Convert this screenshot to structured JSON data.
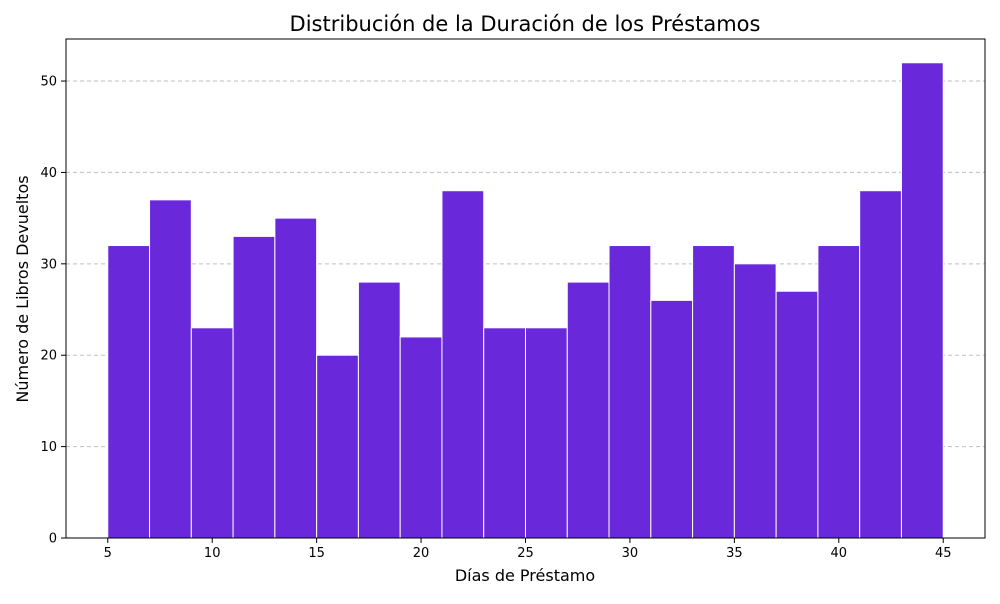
{
  "chart_data": {
    "type": "bar",
    "title": "Distribución de la Duración de los Préstamos",
    "xlabel": "Días de Préstamo",
    "ylabel": "Número de Libros Devueltos",
    "bins": [
      {
        "start": 5,
        "end": 7,
        "count": 32
      },
      {
        "start": 7,
        "end": 9,
        "count": 37
      },
      {
        "start": 9,
        "end": 11,
        "count": 23
      },
      {
        "start": 11,
        "end": 13,
        "count": 33
      },
      {
        "start": 13,
        "end": 15,
        "count": 35
      },
      {
        "start": 15,
        "end": 17,
        "count": 20
      },
      {
        "start": 17,
        "end": 19,
        "count": 28
      },
      {
        "start": 19,
        "end": 21,
        "count": 22
      },
      {
        "start": 21,
        "end": 23,
        "count": 38
      },
      {
        "start": 23,
        "end": 25,
        "count": 23
      },
      {
        "start": 25,
        "end": 27,
        "count": 23
      },
      {
        "start": 27,
        "end": 29,
        "count": 28
      },
      {
        "start": 29,
        "end": 31,
        "count": 32
      },
      {
        "start": 31,
        "end": 33,
        "count": 26
      },
      {
        "start": 33,
        "end": 35,
        "count": 32
      },
      {
        "start": 35,
        "end": 37,
        "count": 30
      },
      {
        "start": 37,
        "end": 39,
        "count": 27
      },
      {
        "start": 39,
        "end": 41,
        "count": 32
      },
      {
        "start": 41,
        "end": 43,
        "count": 38
      },
      {
        "start": 43,
        "end": 45,
        "count": 52
      }
    ],
    "xlim": [
      3,
      47
    ],
    "ylim": [
      0,
      54.6
    ],
    "xticks": [
      5,
      10,
      15,
      20,
      25,
      30,
      35,
      40,
      45
    ],
    "yticks": [
      0,
      10,
      20,
      30,
      40,
      50
    ],
    "grid": {
      "y": true,
      "x": false,
      "style": "dashed"
    },
    "bar_color": "#6a28db",
    "bar_edge_color": "#ffffff"
  }
}
